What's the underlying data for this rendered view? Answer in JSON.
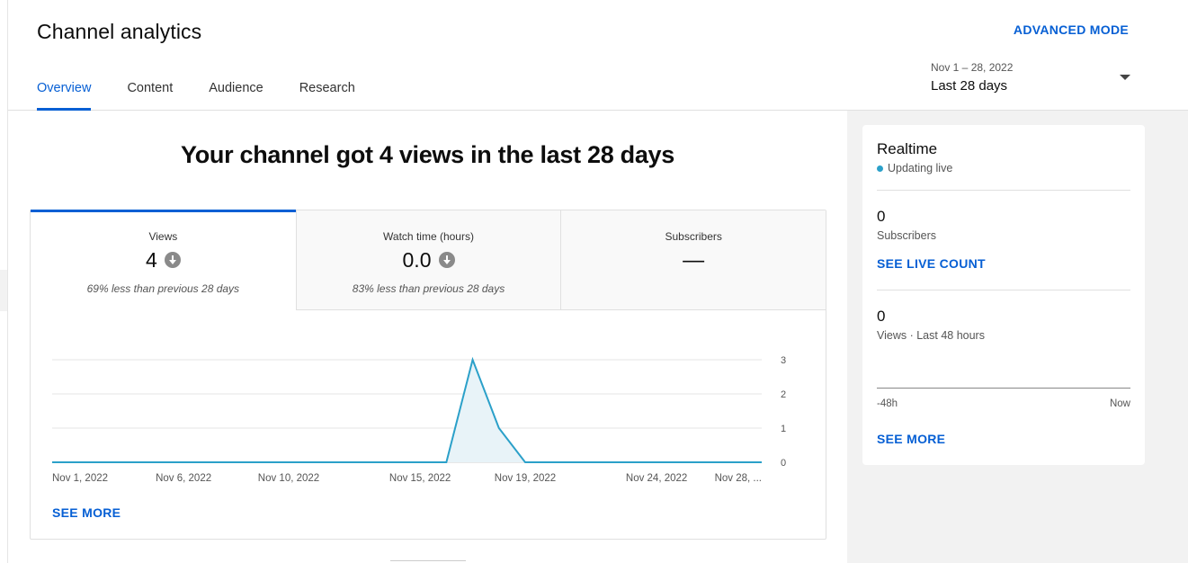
{
  "header": {
    "title": "Channel analytics",
    "advanced_mode": "ADVANCED MODE",
    "tabs": [
      {
        "label": "Overview"
      },
      {
        "label": "Content"
      },
      {
        "label": "Audience"
      },
      {
        "label": "Research"
      }
    ],
    "date_range": "Nov 1 – 28, 2022",
    "date_label": "Last 28 days"
  },
  "main": {
    "headline": "Your channel got 4 views in the last 28 days",
    "metrics": [
      {
        "label": "Views",
        "value": "4",
        "comparison": "69% less than previous 28 days"
      },
      {
        "label": "Watch time (hours)",
        "value": "0.0",
        "comparison": "83% less than previous 28 days"
      },
      {
        "label": "Subscribers",
        "value": "—"
      }
    ],
    "see_more": "SEE MORE"
  },
  "chart_data": {
    "type": "area",
    "x": [
      "Nov 1, 2022",
      "Nov 2, 2022",
      "Nov 3, 2022",
      "Nov 4, 2022",
      "Nov 5, 2022",
      "Nov 6, 2022",
      "Nov 7, 2022",
      "Nov 8, 2022",
      "Nov 9, 2022",
      "Nov 10, 2022",
      "Nov 11, 2022",
      "Nov 12, 2022",
      "Nov 13, 2022",
      "Nov 14, 2022",
      "Nov 15, 2022",
      "Nov 16, 2022",
      "Nov 17, 2022",
      "Nov 18, 2022",
      "Nov 19, 2022",
      "Nov 20, 2022",
      "Nov 21, 2022",
      "Nov 22, 2022",
      "Nov 23, 2022",
      "Nov 24, 2022",
      "Nov 25, 2022",
      "Nov 26, 2022",
      "Nov 27, 2022",
      "Nov 28, 2022"
    ],
    "series": [
      {
        "values": [
          0,
          0,
          0,
          0,
          0,
          0,
          0,
          0,
          0,
          0,
          0,
          0,
          0,
          0,
          0,
          0,
          3,
          1,
          0,
          0,
          0,
          0,
          0,
          0,
          0,
          0,
          0,
          0
        ]
      }
    ],
    "x_tick_labels": [
      "Nov 1, 2022",
      "Nov 6, 2022",
      "Nov 10, 2022",
      "Nov 15, 2022",
      "Nov 19, 2022",
      "Nov 24, 2022",
      "Nov 28, ..."
    ],
    "y_ticks": [
      0,
      1,
      2,
      3
    ],
    "ylim": [
      0,
      3
    ],
    "grid": true,
    "color": "#2ba0c9",
    "fill": "#e8f3f8"
  },
  "realtime": {
    "title": "Realtime",
    "status": "Updating live",
    "subscribers_value": "0",
    "subscribers_label": "Subscribers",
    "see_live_count": "SEE LIVE COUNT",
    "views_value": "0",
    "views_label": "Views · Last 48 hours",
    "axis_start": "-48h",
    "axis_end": "Now",
    "see_more": "SEE MORE",
    "dot_color": "#2ba0c9"
  }
}
